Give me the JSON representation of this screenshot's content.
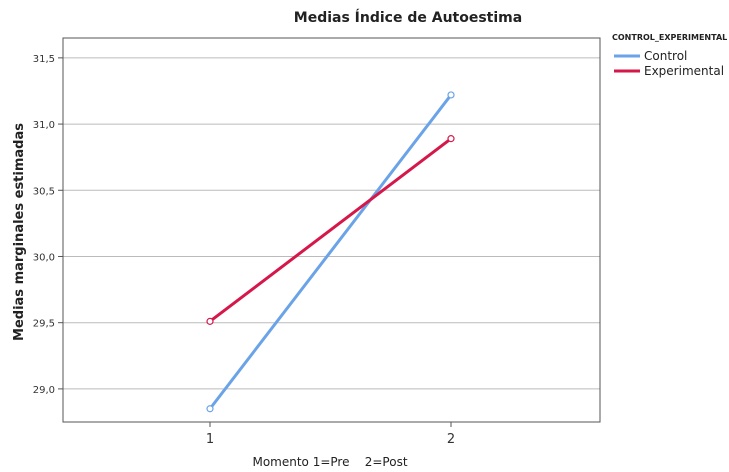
{
  "chart_data": {
    "type": "line",
    "title": "Medias Índice de Autoestima",
    "xlabel": "Momento 1=Pre    2=Post",
    "ylabel": "Medias marginales estimadas",
    "categories": [
      "1",
      "2"
    ],
    "ylim": [
      28.75,
      31.65
    ],
    "yticks": [
      "29,0",
      "29,5",
      "30,0",
      "30,5",
      "31,0",
      "31,5"
    ],
    "ytick_values": [
      29.0,
      29.5,
      30.0,
      30.5,
      31.0,
      31.5
    ],
    "grid": true,
    "legend": {
      "title": "CONTROL_EXPERIMENTAL",
      "placement": "top-right"
    },
    "series": [
      {
        "name": "Control",
        "values": [
          28.85,
          31.22
        ],
        "color": "#6aa3e8"
      },
      {
        "name": "Experimental",
        "values": [
          29.51,
          30.89
        ],
        "color": "#d6174a"
      }
    ]
  }
}
